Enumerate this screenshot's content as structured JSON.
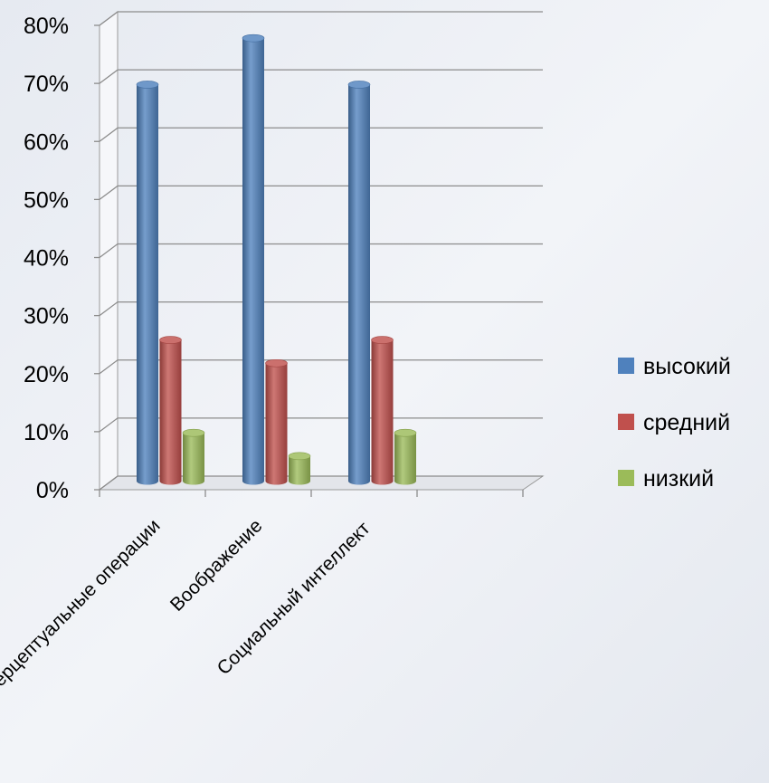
{
  "chart_data": {
    "type": "bar",
    "categories": [
      "Перцептуальные операции",
      "Воображение",
      "Социальный интеллект"
    ],
    "series": [
      {
        "name": "высокий",
        "color": "#4f81bd",
        "values": [
          68,
          76,
          68
        ]
      },
      {
        "name": "средний",
        "color": "#c0504d",
        "values": [
          24,
          20,
          24
        ]
      },
      {
        "name": "низкий",
        "color": "#9bbb59",
        "values": [
          8,
          4,
          8
        ]
      }
    ],
    "yticks": [
      "0%",
      "10%",
      "20%",
      "30%",
      "40%",
      "50%",
      "60%",
      "70%",
      "80%"
    ],
    "ylim": [
      0,
      80
    ],
    "grid": true,
    "legend_position": "right",
    "title": "",
    "xlabel": "",
    "ylabel": ""
  }
}
